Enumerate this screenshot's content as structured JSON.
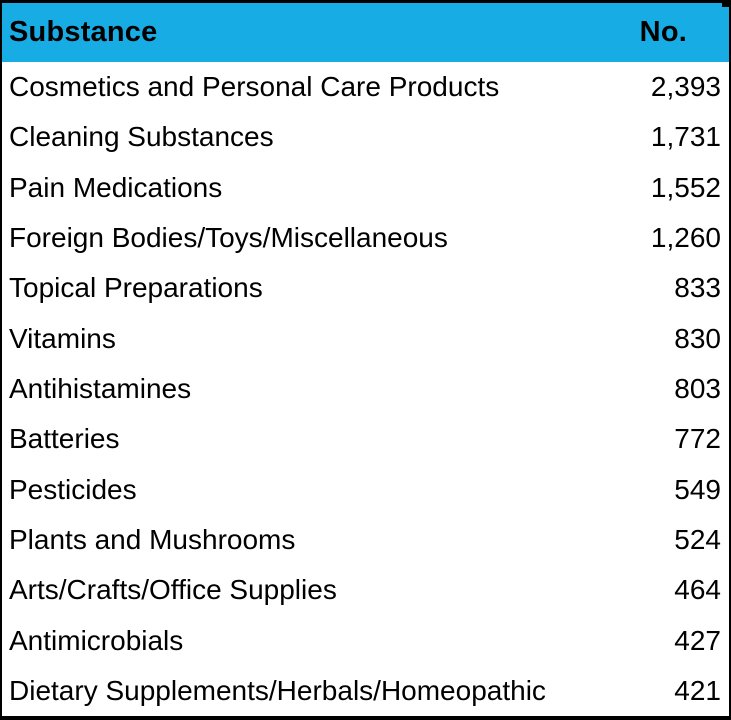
{
  "chart_data": {
    "type": "table",
    "columns": [
      "Substance",
      "No."
    ],
    "rows": [
      [
        "Cosmetics and Personal Care Products",
        "2,393"
      ],
      [
        "Cleaning Substances",
        "1,731"
      ],
      [
        "Pain Medications",
        "1,552"
      ],
      [
        "Foreign Bodies/Toys/Miscellaneous",
        "1,260"
      ],
      [
        "Topical Preparations",
        "833"
      ],
      [
        "Vitamins",
        "830"
      ],
      [
        "Antihistamines",
        "803"
      ],
      [
        "Batteries",
        "772"
      ],
      [
        "Pesticides",
        "549"
      ],
      [
        "Plants and Mushrooms",
        "524"
      ],
      [
        "Arts/Crafts/Office Supplies",
        "464"
      ],
      [
        "Antimicrobials",
        "427"
      ],
      [
        "Dietary Supplements/Herbals/Homeopathic",
        "421"
      ]
    ],
    "values_numeric": [
      2393,
      1731,
      1552,
      1260,
      833,
      830,
      803,
      772,
      549,
      524,
      464,
      427,
      421
    ],
    "layout": {
      "grid": "off",
      "substance_align": "left",
      "number_align": "right"
    }
  },
  "colors": {
    "header_bg": "#17ACE4",
    "header_text": "#000000",
    "body_text": "#000000",
    "row_bg": "#ffffff",
    "border": "#000000"
  }
}
